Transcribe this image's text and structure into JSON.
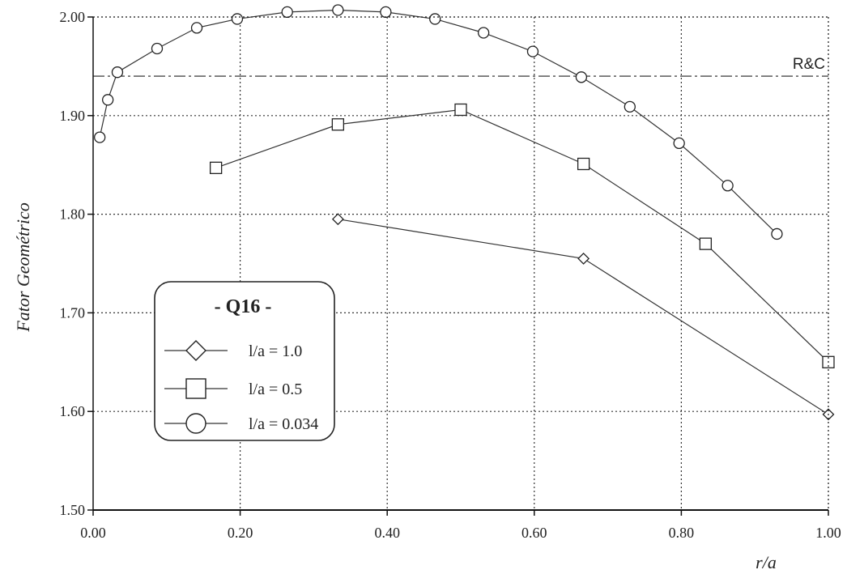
{
  "chart_data": {
    "type": "line",
    "title": "",
    "xlabel": "r/a",
    "ylabel": "Fator Geométrico",
    "xlim": [
      0.0,
      1.0
    ],
    "ylim": [
      1.5,
      2.0
    ],
    "xticks": [
      0.0,
      0.2,
      0.4,
      0.6,
      0.8,
      1.0
    ],
    "yticks": [
      1.5,
      1.6,
      1.7,
      1.8,
      1.9,
      2.0
    ],
    "xtick_labels": [
      "0.00",
      "0.20",
      "0.40",
      "0.60",
      "0.80",
      "1.00"
    ],
    "ytick_labels": [
      "1.50",
      "1.60",
      "1.70",
      "1.80",
      "1.90",
      "2.00"
    ],
    "grid": true,
    "legend_title": "- Q16 -",
    "legend_position": "bottom-left",
    "reference_line": {
      "label": "R&C",
      "y": 1.94
    },
    "series": [
      {
        "name": "l/a = 1.0",
        "marker": "diamond",
        "x": [
          0.333,
          0.667,
          1.0
        ],
        "y": [
          1.795,
          1.755,
          1.597
        ]
      },
      {
        "name": "l/a = 0.5",
        "marker": "square",
        "x": [
          0.167,
          0.333,
          0.5,
          0.667,
          0.833,
          1.0
        ],
        "y": [
          1.847,
          1.891,
          1.906,
          1.851,
          1.77,
          1.65
        ]
      },
      {
        "name": "l/a = 0.034",
        "marker": "circle",
        "x": [
          0.009,
          0.02,
          0.033,
          0.087,
          0.141,
          0.196,
          0.264,
          0.333,
          0.398,
          0.465,
          0.531,
          0.598,
          0.664,
          0.73,
          0.797,
          0.863,
          0.93
        ],
        "y": [
          1.878,
          1.916,
          1.944,
          1.968,
          1.989,
          1.998,
          2.005,
          2.007,
          2.005,
          1.998,
          1.984,
          1.965,
          1.939,
          1.909,
          1.872,
          1.829,
          1.78
        ]
      }
    ]
  }
}
